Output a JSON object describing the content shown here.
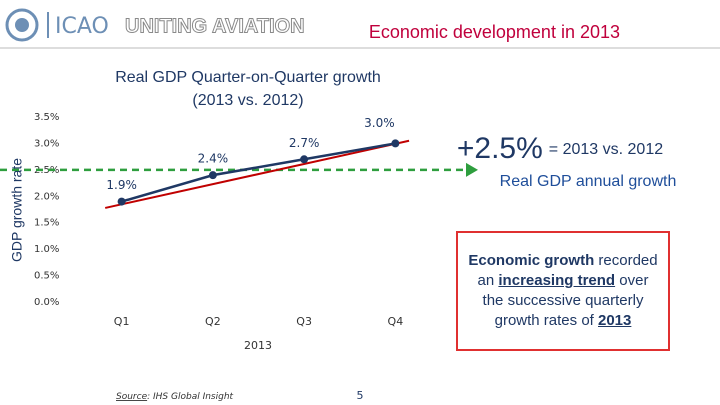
{
  "header": {
    "org": "ICAO",
    "slogan": "UNITING AVIATION",
    "title": "Economic development in 2013"
  },
  "chart_data": {
    "type": "line",
    "title": [
      "Real GDP Quarter-on-Quarter growth",
      "(2013 vs. 2012)"
    ],
    "y_label": "GDP growth rate",
    "x_label": "2013",
    "categories": [
      "Q1",
      "Q2",
      "Q3",
      "Q4"
    ],
    "values": [
      1.9,
      2.4,
      2.7,
      3.0
    ],
    "value_labels": [
      "1.9%",
      "2.4%",
      "2.7%",
      "3.0%"
    ],
    "color": "#1f3864",
    "ylim": [
      0,
      3.5
    ],
    "yticks": [
      {
        "value": 0,
        "label": "0.0%"
      },
      {
        "value": 0.5,
        "label": "0.5%"
      },
      {
        "value": 1,
        "label": "1.0%"
      },
      {
        "value": 1.5,
        "label": "1.5%"
      },
      {
        "value": 2,
        "label": "2.0%"
      },
      {
        "value": 2.5,
        "label": "2.5%"
      },
      {
        "value": 3,
        "label": "3.0%"
      },
      {
        "value": 3.5,
        "label": "3.5%"
      }
    ],
    "grid": false,
    "trend": {
      "values": [
        1.78,
        3.05
      ],
      "color": "#c00000"
    },
    "reference_line": {
      "value": 2.5,
      "color": "#2e9e3e"
    }
  },
  "highlight": {
    "value": "+2.5%",
    "note": "= 2013 vs. 2012",
    "caption": "Real GDP annual growth"
  },
  "box": [
    {
      "text": "Economic growth",
      "bold": true
    },
    {
      "text": " recorded an "
    },
    {
      "text": "increasing trend",
      "bold": true,
      "underline": true
    },
    {
      "text": " over the successive quarterly growth rates of "
    },
    {
      "text": "2013",
      "bold": true,
      "underline": true
    }
  ],
  "source": [
    {
      "text": "Source"
    },
    {
      "text": ": IHS Global Insight"
    }
  ],
  "page": "5"
}
